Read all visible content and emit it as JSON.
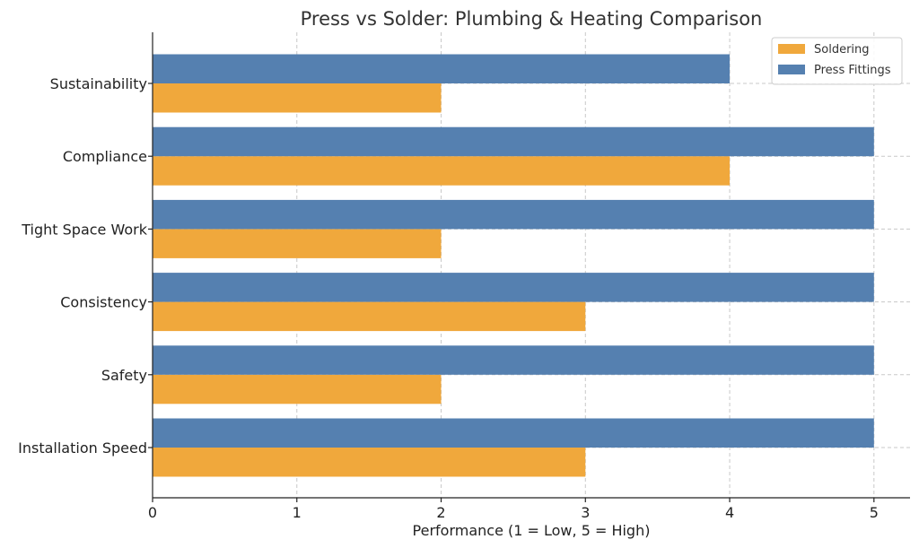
{
  "colors": {
    "soldering": "#f0a83c",
    "press_fittings": "#5580b0",
    "grid": "#c8c8c8",
    "axis": "#222222"
  },
  "chart_data": {
    "type": "bar",
    "orientation": "horizontal",
    "title": "Press vs Solder: Plumbing & Heating Comparison",
    "xlabel": "Performance (1 = Low, 5 = High)",
    "ylabel": "",
    "xlim": [
      0,
      5.25
    ],
    "xticks": [
      0,
      1,
      2,
      3,
      4,
      5
    ],
    "categories": [
      "Installation Speed",
      "Safety",
      "Consistency",
      "Tight Space Work",
      "Compliance",
      "Sustainability"
    ],
    "series": [
      {
        "name": "Soldering",
        "values": [
          3,
          2,
          3,
          2,
          4,
          2
        ],
        "color": "#f0a83c"
      },
      {
        "name": "Press Fittings",
        "values": [
          5,
          5,
          5,
          5,
          5,
          4
        ],
        "color": "#5580b0"
      }
    ],
    "grid": true,
    "legend_position": "top-right"
  }
}
